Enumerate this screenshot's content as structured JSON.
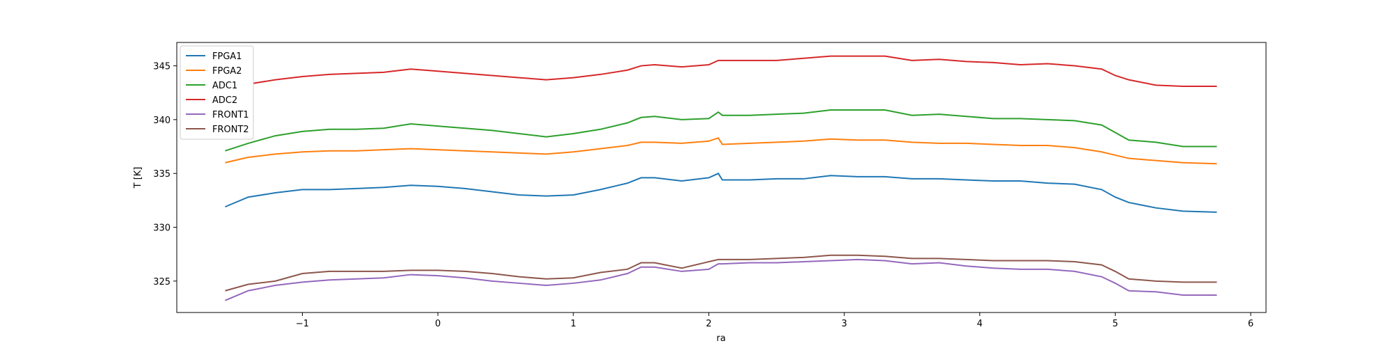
{
  "chart_data": {
    "type": "line",
    "xlabel": "ra",
    "ylabel": "T [K]",
    "x": [
      -1.57,
      -1.4,
      -1.2,
      -1,
      -0.8,
      -0.6,
      -0.4,
      -0.2,
      0,
      0.2,
      0.4,
      0.6,
      0.8,
      1,
      1.2,
      1.4,
      1.5,
      1.6,
      1.8,
      2,
      2.07,
      2.1,
      2.3,
      2.5,
      2.7,
      2.9,
      3.1,
      3.3,
      3.5,
      3.7,
      3.9,
      4.1,
      4.3,
      4.5,
      4.7,
      4.9,
      5.0,
      5.1,
      5.3,
      5.5,
      5.75
    ],
    "series": [
      {
        "name": "FPGA1",
        "color": "#1f77b4",
        "values": [
          331.9,
          332.8,
          333.2,
          333.5,
          333.5,
          333.6,
          333.7,
          333.9,
          333.8,
          333.6,
          333.3,
          333.0,
          332.9,
          333.0,
          333.5,
          334.1,
          334.6,
          334.6,
          334.3,
          334.6,
          335.0,
          334.4,
          334.4,
          334.5,
          334.5,
          334.8,
          334.7,
          334.7,
          334.5,
          334.5,
          334.4,
          334.3,
          334.3,
          334.1,
          334.0,
          333.5,
          332.8,
          332.3,
          331.8,
          331.5,
          331.4
        ]
      },
      {
        "name": "FPGA2",
        "color": "#ff7f0e",
        "values": [
          336.0,
          336.5,
          336.8,
          337.0,
          337.1,
          337.1,
          337.2,
          337.3,
          337.2,
          337.1,
          337.0,
          336.9,
          336.8,
          337.0,
          337.3,
          337.6,
          337.9,
          337.9,
          337.8,
          338.0,
          338.3,
          337.7,
          337.8,
          337.9,
          338.0,
          338.2,
          338.1,
          338.1,
          337.9,
          337.8,
          337.8,
          337.7,
          337.6,
          337.6,
          337.4,
          337.0,
          336.7,
          336.4,
          336.2,
          336.0,
          335.9
        ]
      },
      {
        "name": "ADC1",
        "color": "#2ca02c",
        "values": [
          337.1,
          337.8,
          338.5,
          338.9,
          339.1,
          339.1,
          339.2,
          339.6,
          339.4,
          339.2,
          339.0,
          338.7,
          338.4,
          338.7,
          339.1,
          339.7,
          340.2,
          340.3,
          340.0,
          340.1,
          340.7,
          340.4,
          340.4,
          340.5,
          340.6,
          340.9,
          340.9,
          340.9,
          340.4,
          340.5,
          340.3,
          340.1,
          340.1,
          340.0,
          339.9,
          339.5,
          338.8,
          338.1,
          337.9,
          337.5,
          337.5
        ]
      },
      {
        "name": "ADC2",
        "color": "#d62728",
        "values": [
          342.9,
          343.3,
          343.7,
          344.0,
          344.2,
          344.3,
          344.4,
          344.7,
          344.5,
          344.3,
          344.1,
          343.9,
          343.7,
          343.9,
          344.2,
          344.6,
          345.0,
          345.1,
          344.9,
          345.1,
          345.5,
          345.5,
          345.5,
          345.5,
          345.7,
          345.9,
          345.9,
          345.9,
          345.5,
          345.6,
          345.4,
          345.3,
          345.1,
          345.2,
          345.0,
          344.7,
          344.1,
          343.7,
          343.2,
          343.1,
          343.1
        ]
      },
      {
        "name": "FRONT1",
        "color": "#9467bd",
        "values": [
          323.2,
          324.1,
          324.6,
          324.9,
          325.1,
          325.2,
          325.3,
          325.6,
          325.5,
          325.3,
          325.0,
          324.8,
          324.6,
          324.8,
          325.1,
          325.7,
          326.3,
          326.3,
          325.9,
          326.1,
          326.6,
          326.6,
          326.7,
          326.7,
          326.8,
          326.9,
          327.0,
          326.9,
          326.6,
          326.7,
          326.4,
          326.2,
          326.1,
          326.1,
          325.9,
          325.4,
          324.8,
          324.1,
          324.0,
          323.7,
          323.7
        ]
      },
      {
        "name": "FRONT2",
        "color": "#8c564b",
        "values": [
          324.1,
          324.7,
          325.0,
          325.7,
          325.9,
          325.9,
          325.9,
          326.0,
          326.0,
          325.9,
          325.7,
          325.4,
          325.2,
          325.3,
          325.8,
          326.1,
          326.7,
          326.7,
          326.2,
          326.8,
          327.0,
          327.0,
          327.0,
          327.1,
          327.2,
          327.4,
          327.4,
          327.3,
          327.1,
          327.1,
          327.0,
          326.9,
          326.9,
          326.9,
          326.8,
          326.5,
          325.9,
          325.2,
          325.0,
          324.9,
          324.9
        ]
      }
    ],
    "xlim": [
      -1.927,
      6.113
    ],
    "ylim": [
      322.08,
      347.17
    ],
    "xticks": [
      {
        "value": -1,
        "label": "−1"
      },
      0,
      1,
      2,
      3,
      4,
      5,
      6
    ],
    "yticks": [
      325,
      330,
      335,
      340,
      345
    ],
    "legend": "upper left"
  }
}
